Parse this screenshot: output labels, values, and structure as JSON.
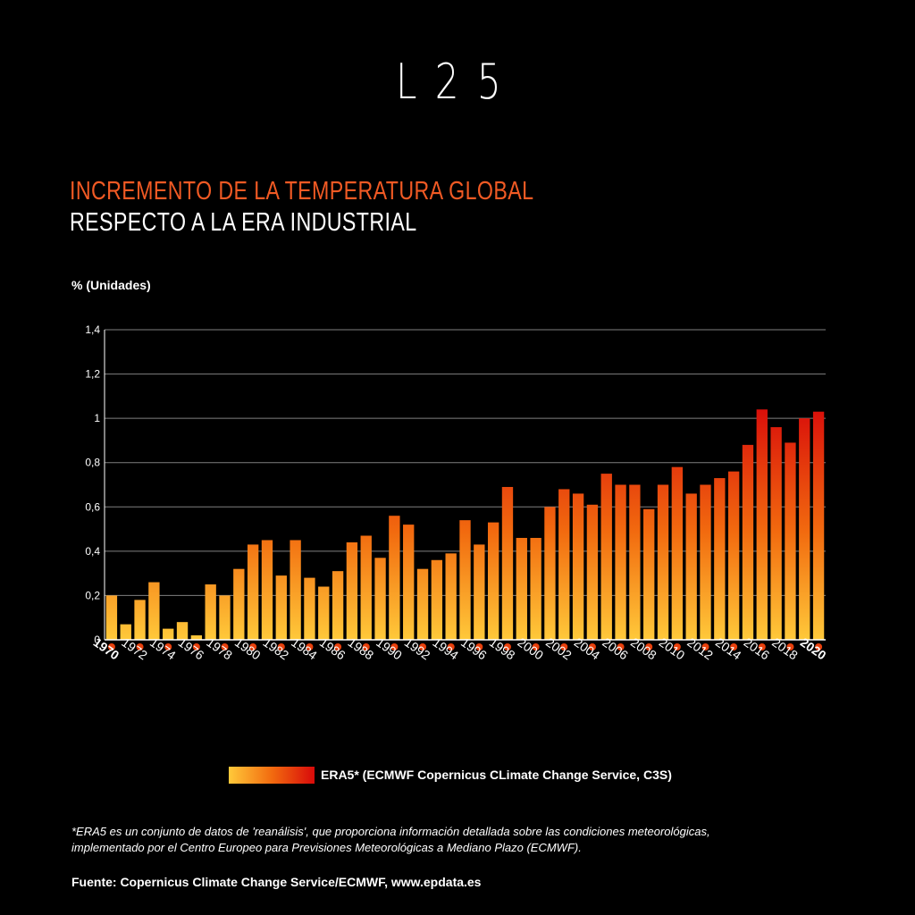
{
  "brand": {
    "logo": "L25"
  },
  "title": {
    "line1": "INCREMENTO DE LA TEMPERATURA GLOBAL",
    "line2": "RESPECTO A LA ERA INDUSTRIAL"
  },
  "colors": {
    "title_accent": "#f15a24",
    "bar_bottom": "#ffc93a",
    "bar_middle": "#f26b0f",
    "bar_top": "#d80a0a",
    "marker": "#e8400c",
    "grid": "#7f7f7f",
    "background": "#000000"
  },
  "chart_data": {
    "type": "bar",
    "ylabel": "% (Unidades)",
    "xlabel": "",
    "ylim": [
      0,
      1.4
    ],
    "yticks": [
      "0",
      "0,2",
      "0,4",
      "0,6",
      "0,8",
      "1",
      "1,2",
      "1,4"
    ],
    "grid": true,
    "x": [
      1970,
      1971,
      1972,
      1973,
      1974,
      1975,
      1976,
      1977,
      1978,
      1979,
      1980,
      1981,
      1982,
      1983,
      1984,
      1985,
      1986,
      1987,
      1988,
      1989,
      1990,
      1991,
      1992,
      1993,
      1994,
      1995,
      1996,
      1997,
      1998,
      1999,
      2000,
      2001,
      2002,
      2003,
      2004,
      2005,
      2006,
      2007,
      2008,
      2009,
      2010,
      2011,
      2012,
      2013,
      2014,
      2015,
      2016,
      2017,
      2018,
      2019,
      2020
    ],
    "xtick_labels": [
      "1970",
      "1972",
      "1974",
      "1976",
      "1978",
      "1980",
      "1982",
      "1984",
      "1986",
      "1988",
      "1990",
      "1992",
      "1994",
      "1996",
      "1998",
      "2000",
      "2002",
      "2004",
      "2006",
      "2008",
      "2010",
      "2012",
      "2014",
      "2016",
      "2018",
      "2020"
    ],
    "xtick_bold": [
      "1970",
      "2020"
    ],
    "series": [
      {
        "name": "ERA5* (ECMWF Copernicus CLimate Change Service, C3S)",
        "values": [
          0.2,
          0.07,
          0.18,
          0.26,
          0.05,
          0.08,
          0.02,
          0.25,
          0.2,
          0.32,
          0.43,
          0.45,
          0.29,
          0.45,
          0.28,
          0.24,
          0.31,
          0.44,
          0.47,
          0.37,
          0.56,
          0.52,
          0.32,
          0.36,
          0.39,
          0.54,
          0.43,
          0.53,
          0.69,
          0.46,
          0.46,
          0.6,
          0.68,
          0.66,
          0.61,
          0.75,
          0.7,
          0.7,
          0.59,
          0.7,
          0.78,
          0.66,
          0.7,
          0.73,
          0.76,
          0.88,
          1.04,
          0.96,
          0.89,
          1.0,
          1.03
        ]
      }
    ]
  },
  "legend": {
    "label": "ERA5* (ECMWF Copernicus CLimate Change Service, C3S)",
    "position": "bottom-center"
  },
  "footnote": {
    "line1": "*ERA5 es un conjunto de datos de 'reanálisis', que proporciona información detallada sobre las condiciones meteorológicas,",
    "line2": "implementado por el Centro Europeo para Previsiones Meteorológicas a Mediano Plazo (ECMWF)."
  },
  "source": "Fuente: Copernicus Climate Change Service/ECMWF, www.epdata.es"
}
